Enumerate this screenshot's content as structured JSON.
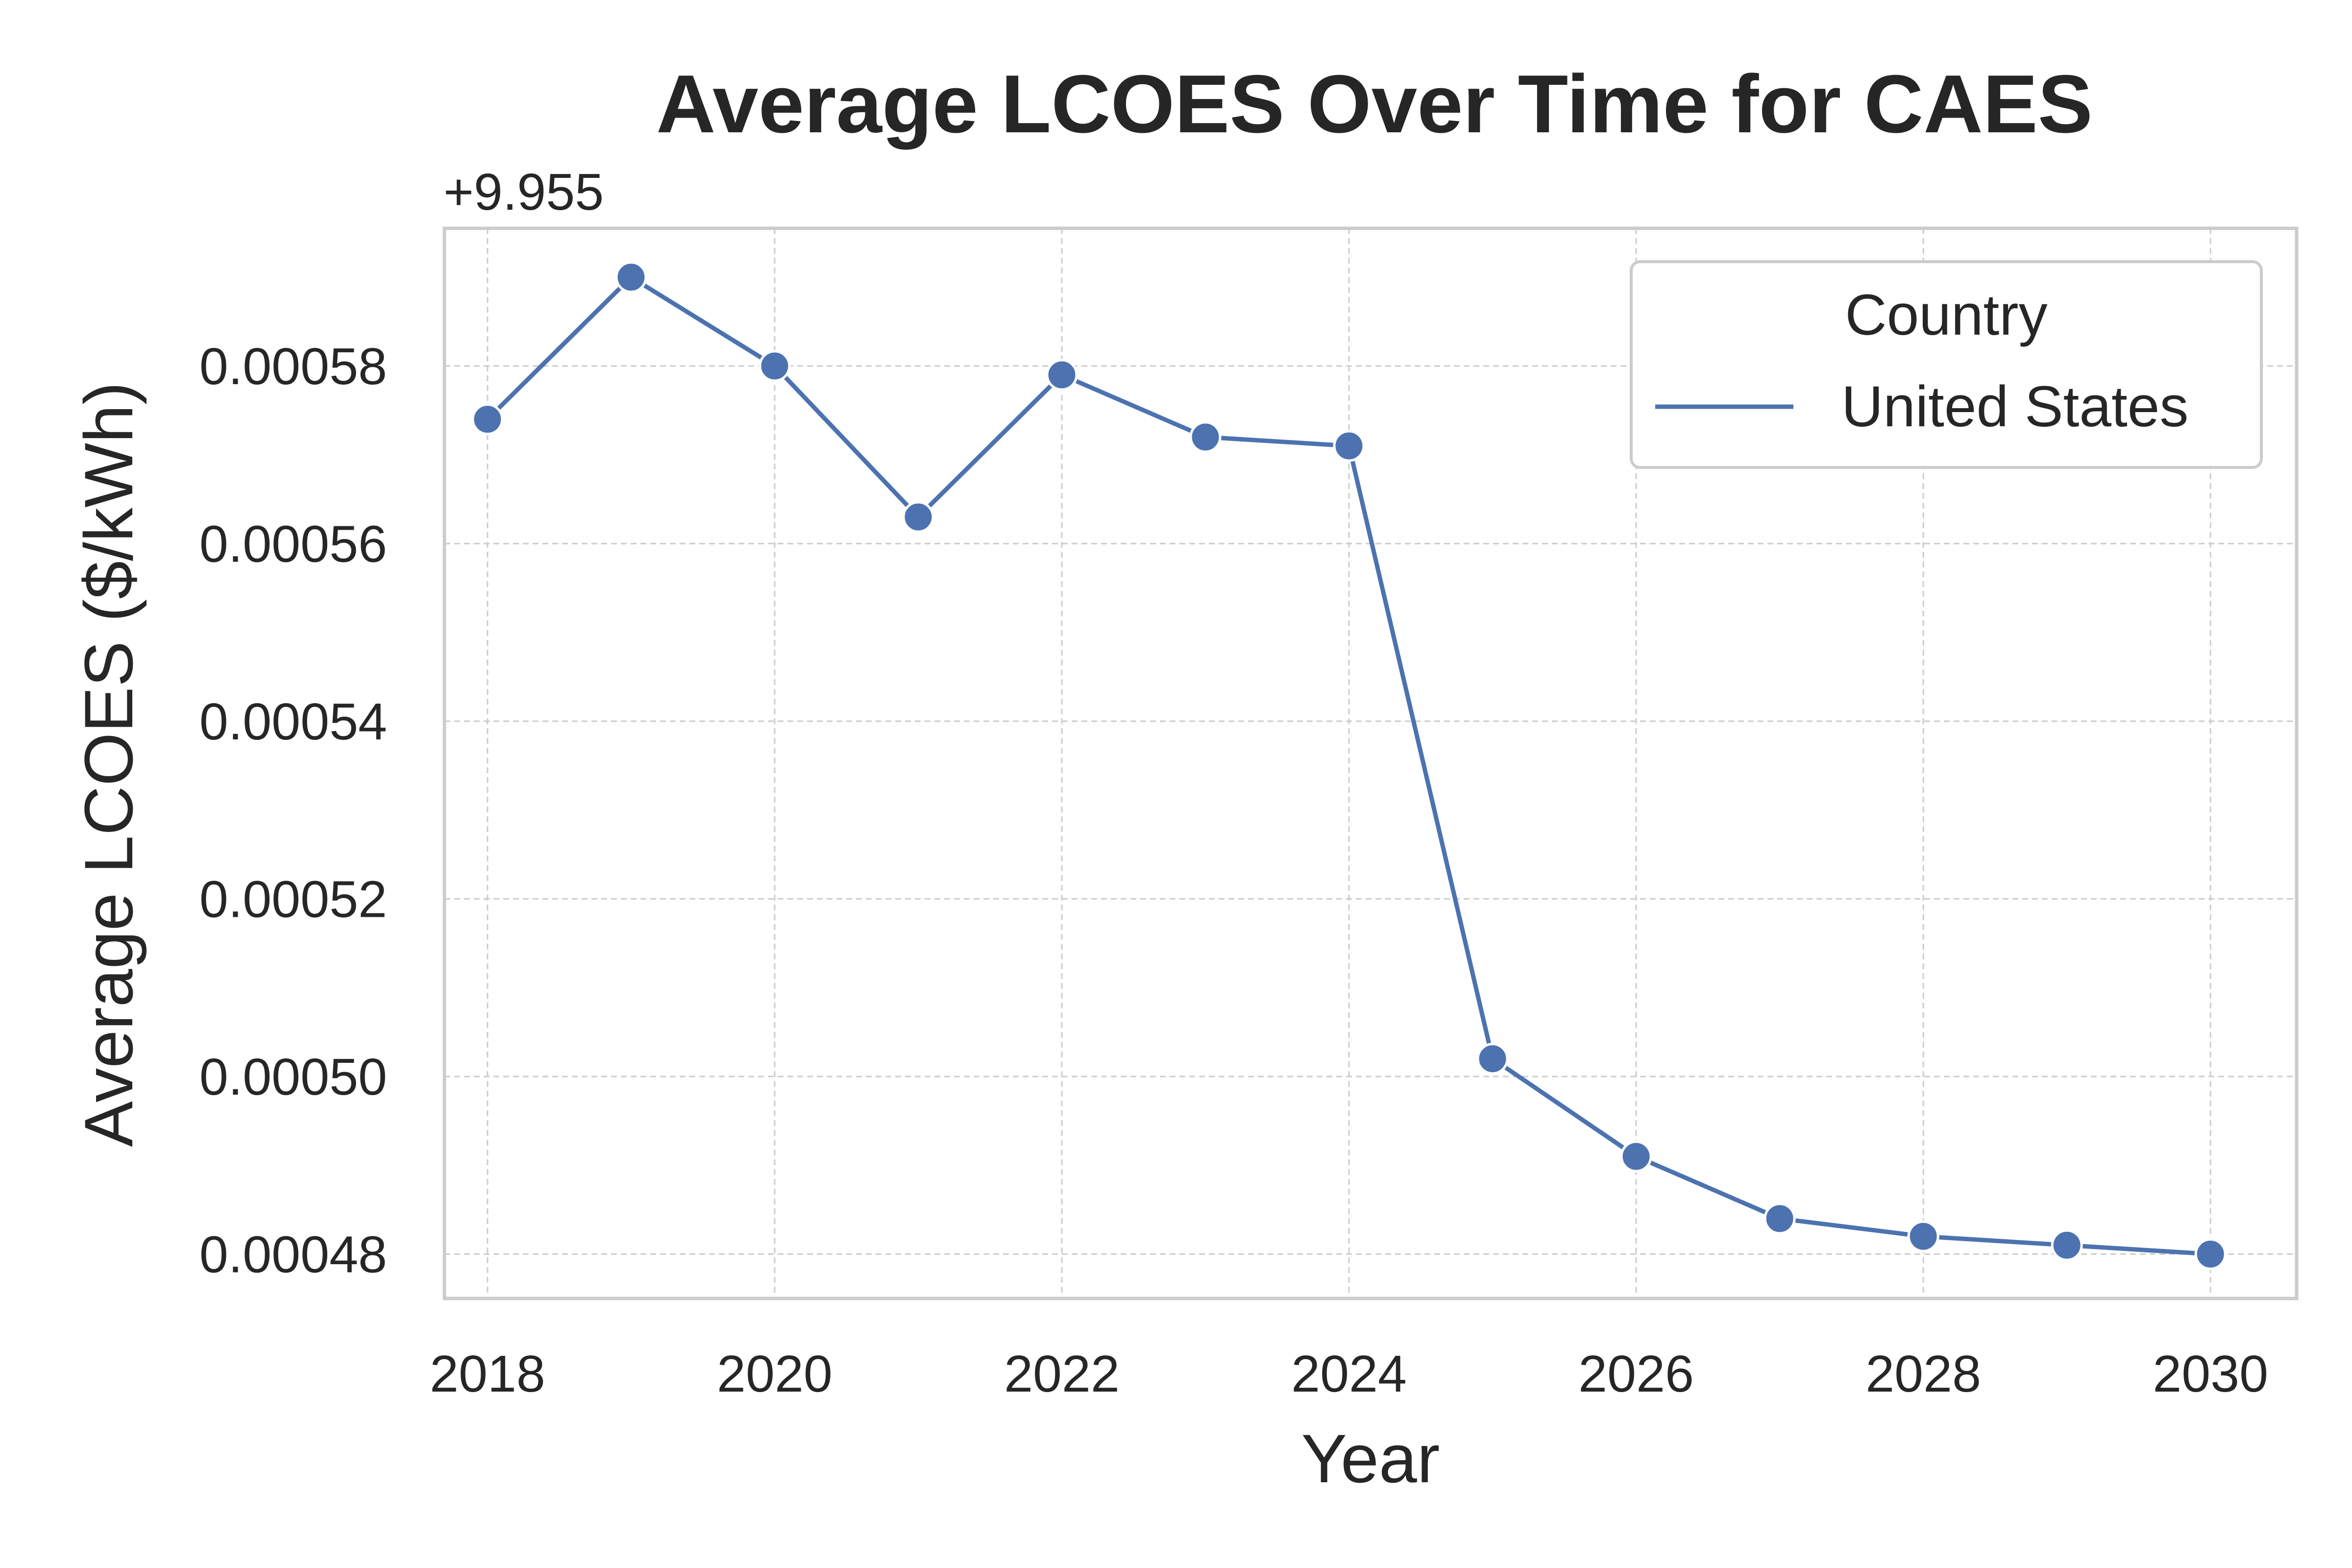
{
  "chart_data": {
    "type": "line",
    "title": "Average LCOES Over Time for CAES",
    "xlabel": "Year",
    "ylabel": "Average LCOES ($/kWh)",
    "y_offset_label": "+9.955",
    "x_ticks": [
      "2018",
      "2020",
      "2022",
      "2024",
      "2026",
      "2028",
      "2030"
    ],
    "y_ticks": [
      "0.00048",
      "0.00050",
      "0.00052",
      "0.00054",
      "0.00056",
      "0.00058"
    ],
    "xlim": [
      2017.7,
      2030.6
    ],
    "ylim": [
      0.000475,
      0.0005955
    ],
    "grid": true,
    "legend": {
      "title": "Country",
      "placement": "top-right"
    },
    "x": [
      2018,
      2019,
      2020,
      2021,
      2022,
      2023,
      2024,
      2025,
      2026,
      2027,
      2028,
      2029,
      2030
    ],
    "series": [
      {
        "name": "United States",
        "color": "#4c72b0",
        "values": [
          0.000574,
          0.00059,
          0.00058,
          0.000563,
          0.000579,
          0.000572,
          0.000571,
          0.000502,
          0.000491,
          0.000484,
          0.000482,
          0.000481,
          0.00048
        ]
      }
    ]
  }
}
